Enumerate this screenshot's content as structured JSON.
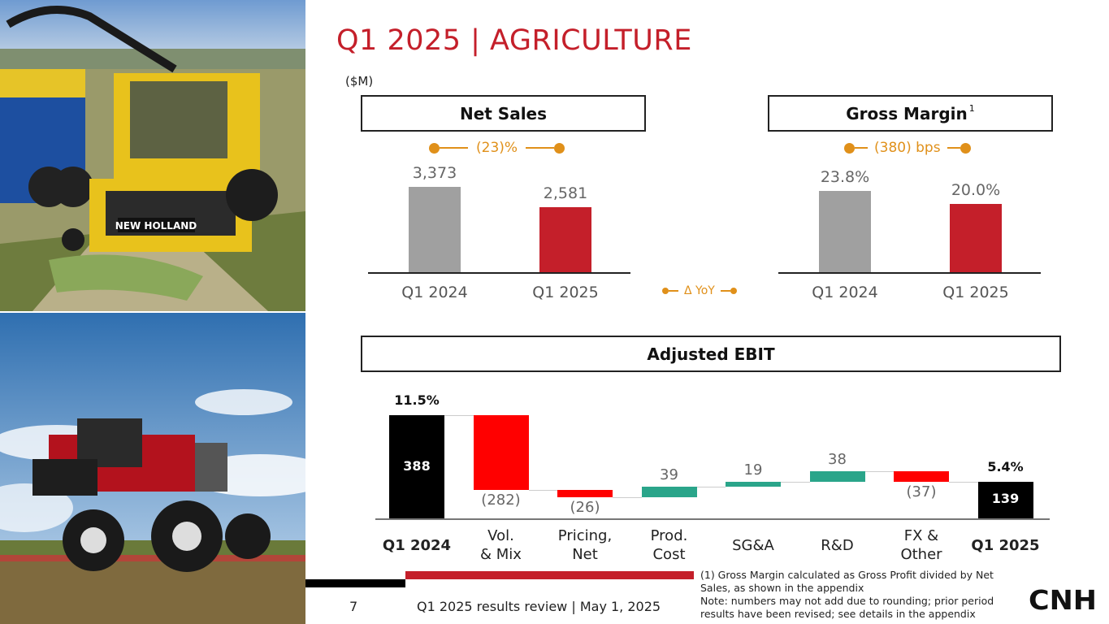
{
  "page": {
    "title": "Q1 2025 | AGRICULTURE",
    "unit": "($M)",
    "page_number": "7",
    "footer_text": "Q1 2025 results review | May 1, 2025",
    "footnote_line1": "(1) Gross Margin calculated as Gross Profit divided by Net Sales, as shown in the appendix",
    "footnote_line2": "Note: numbers may not add due to rounding; prior period results have been revised; see details in the appendix",
    "logo_text": "CNH",
    "photo_top_brand": "NEW HOLLAND"
  },
  "legend": {
    "delta_yoy": "Δ YoY"
  },
  "colors": {
    "accent": "#c41f2a",
    "bar_prior": "#a0a0a0",
    "bar_current": "#c41f2a",
    "delta": "#e0901a",
    "wf_neg": "#ff0000",
    "wf_pos": "#2aa58a",
    "wf_total": "#000000"
  },
  "chart_data": [
    {
      "type": "bar",
      "title": "Net Sales",
      "categories": [
        "Q1 2024",
        "Q1 2025"
      ],
      "values": [
        3373,
        2581
      ],
      "value_labels": [
        "3,373",
        "2,581"
      ],
      "delta_label": "(23)%"
    },
    {
      "type": "bar",
      "title": "Gross Margin",
      "title_superscript": "1",
      "categories": [
        "Q1 2024",
        "Q1 2025"
      ],
      "values": [
        23.8,
        20.0
      ],
      "value_labels": [
        "23.8%",
        "20.0%"
      ],
      "delta_label": "(380) bps"
    },
    {
      "type": "waterfall",
      "title": "Adjusted EBIT",
      "steps": [
        {
          "label_lines": [
            "Q1 2024"
          ],
          "value": 388,
          "value_label": "388",
          "kind": "total",
          "margin_label": "11.5%"
        },
        {
          "label_lines": [
            "Vol.",
            "& Mix"
          ],
          "value": -282,
          "value_label": "(282)",
          "kind": "neg"
        },
        {
          "label_lines": [
            "Pricing,",
            "Net"
          ],
          "value": -26,
          "value_label": "(26)",
          "kind": "neg"
        },
        {
          "label_lines": [
            "Prod.",
            "Cost"
          ],
          "value": 39,
          "value_label": "39",
          "kind": "pos"
        },
        {
          "label_lines": [
            "SG&A"
          ],
          "value": 19,
          "value_label": "19",
          "kind": "pos"
        },
        {
          "label_lines": [
            "R&D"
          ],
          "value": 38,
          "value_label": "38",
          "kind": "pos"
        },
        {
          "label_lines": [
            "FX &",
            "Other"
          ],
          "value": -37,
          "value_label": "(37)",
          "kind": "neg"
        },
        {
          "label_lines": [
            "Q1 2025"
          ],
          "value": 139,
          "value_label": "139",
          "kind": "total",
          "margin_label": "5.4%"
        }
      ]
    }
  ]
}
